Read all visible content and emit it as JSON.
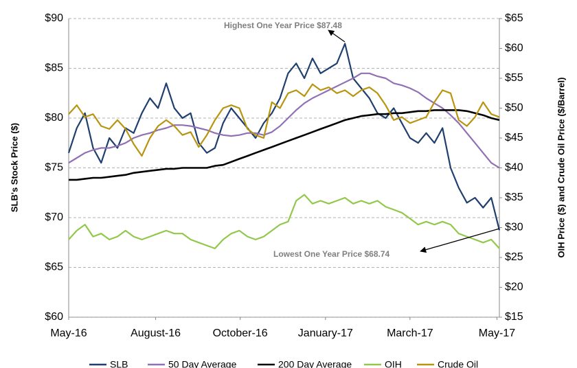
{
  "chart_data": {
    "type": "line",
    "y_label": "SLB's Stock Price ($)",
    "y2_label": "OIH Price ($) and Crude Oil Price ($/Barrel)",
    "annotations": [
      "Highest One Year Price $87.48",
      "Lowest One Year Price $68.74"
    ],
    "x": [
      0,
      1,
      2,
      3,
      4,
      5,
      6,
      7,
      8,
      9,
      10,
      11,
      12,
      13,
      14,
      15,
      16,
      17,
      18,
      19,
      20,
      21,
      22,
      23,
      24,
      25,
      26,
      27,
      28,
      29,
      30,
      31,
      32,
      33,
      34,
      35,
      36,
      37,
      38,
      39,
      40,
      41,
      42,
      43,
      44,
      45,
      46,
      47,
      48,
      49,
      50,
      51,
      52,
      53
    ],
    "xlim": [
      0,
      53
    ],
    "xticks": [
      {
        "value": 0,
        "label": "May-16"
      },
      {
        "value": 10.7,
        "label": "August-16"
      },
      {
        "value": 21.1,
        "label": "October-16"
      },
      {
        "value": 31.6,
        "label": "January-17"
      },
      {
        "value": 42,
        "label": "March-17"
      },
      {
        "value": 52.7,
        "label": "May-17"
      }
    ],
    "ylim": [
      60,
      90
    ],
    "yticks": [
      {
        "value": 60,
        "label": "$60"
      },
      {
        "value": 65,
        "label": "$65"
      },
      {
        "value": 70,
        "label": "$70"
      },
      {
        "value": 75,
        "label": "$75"
      },
      {
        "value": 80,
        "label": "$80"
      },
      {
        "value": 85,
        "label": "$85"
      },
      {
        "value": 90,
        "label": "$90"
      }
    ],
    "y2lim": [
      15,
      65
    ],
    "y2ticks": [
      {
        "value": 15,
        "label": "$15"
      },
      {
        "value": 20,
        "label": "$20"
      },
      {
        "value": 25,
        "label": "$25"
      },
      {
        "value": 30,
        "label": "$30"
      },
      {
        "value": 35,
        "label": "$35"
      },
      {
        "value": 40,
        "label": "$40"
      },
      {
        "value": 45,
        "label": "$45"
      },
      {
        "value": 50,
        "label": "$50"
      },
      {
        "value": 55,
        "label": "$55"
      },
      {
        "value": 60,
        "label": "$60"
      },
      {
        "value": 65,
        "label": "$65"
      }
    ],
    "grid": true,
    "legend": "bottom",
    "series": [
      {
        "name": "SLB",
        "color": "#1f3f6e",
        "values": [
          76.5,
          79,
          80.5,
          77,
          75.5,
          78,
          77,
          79,
          78.5,
          80.5,
          82,
          81,
          83.5,
          81,
          80,
          80.5,
          77.5,
          76.5,
          77,
          79.5,
          81,
          80,
          79,
          78,
          79.5,
          80.5,
          82,
          84.5,
          85.5,
          84,
          86,
          84.5,
          85,
          85.5,
          87.48,
          84,
          83,
          82,
          80.5,
          80,
          81,
          79.5,
          78,
          77.5,
          78.5,
          77.5,
          79,
          75,
          73,
          71.5,
          72,
          71,
          72,
          68.74
        ]
      },
      {
        "name": "50 Day Average",
        "color": "#9070b4",
        "values": [
          75.5,
          76,
          76.5,
          76.8,
          77,
          77,
          77.2,
          77.5,
          78,
          78.3,
          78.5,
          78.8,
          79,
          79.3,
          79.3,
          79.2,
          79,
          78.8,
          78.5,
          78.3,
          78.2,
          78.3,
          78.5,
          78.5,
          78.3,
          78.6,
          79.2,
          80,
          80.8,
          81.5,
          82,
          82.4,
          82.8,
          83.2,
          83.6,
          84,
          84.5,
          84.5,
          84.2,
          84,
          83.5,
          83.3,
          83,
          82.6,
          82,
          81.5,
          81,
          80.3,
          79.5,
          78.5,
          77.5,
          76.5,
          75.5,
          75
        ]
      },
      {
        "name": "200 Day Average",
        "color": "#000000",
        "values": [
          73.8,
          73.8,
          73.9,
          74,
          74,
          74.1,
          74.2,
          74.3,
          74.5,
          74.6,
          74.7,
          74.8,
          74.9,
          74.9,
          75,
          75,
          75,
          75,
          75.2,
          75.3,
          75.6,
          75.9,
          76.2,
          76.5,
          76.8,
          77.1,
          77.4,
          77.7,
          78,
          78.3,
          78.6,
          78.9,
          79.2,
          79.5,
          79.8,
          80,
          80.2,
          80.3,
          80.4,
          80.4,
          80.5,
          80.5,
          80.6,
          80.7,
          80.7,
          80.8,
          80.8,
          80.8,
          80.8,
          80.7,
          80.5,
          80.3,
          80,
          79.8
        ]
      },
      {
        "name": "OIH",
        "color": "#92c84a",
        "axis": "y2",
        "values": [
          28,
          29.5,
          30.5,
          28.5,
          29,
          28,
          28.5,
          29.5,
          28.5,
          28,
          28.5,
          29,
          29.5,
          29,
          29,
          28,
          27.5,
          27,
          26.5,
          28,
          29,
          29.5,
          28.5,
          28,
          28.5,
          29.5,
          30.5,
          31,
          34.5,
          35.5,
          34,
          34.5,
          34,
          34.5,
          35,
          34,
          34.5,
          34,
          34.5,
          33.5,
          33,
          32.5,
          31.5,
          30.5,
          31,
          30.5,
          31,
          30.5,
          29,
          28.5,
          28,
          27.5,
          28,
          26.5
        ]
      },
      {
        "name": "Crude Oil",
        "color": "#b8940f",
        "axis": "y2",
        "values": [
          49,
          50.5,
          48.5,
          49,
          47,
          46.5,
          48,
          46.5,
          44,
          42,
          45,
          47,
          48,
          47,
          45.5,
          46,
          43.5,
          45.5,
          48,
          50,
          50.5,
          50,
          46.5,
          45.5,
          45,
          51,
          50,
          52.5,
          53,
          52,
          54,
          53,
          53.5,
          52.5,
          53,
          52,
          53,
          53.5,
          52.5,
          50.5,
          48,
          48.5,
          47.5,
          48,
          48.5,
          51,
          53,
          52.5,
          48,
          47,
          48.5,
          51,
          49,
          48.5
        ]
      }
    ]
  }
}
